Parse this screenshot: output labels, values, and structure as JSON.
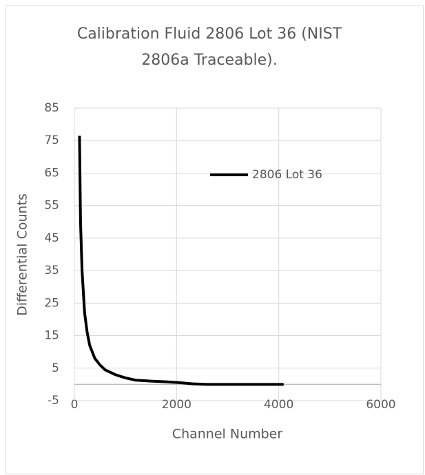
{
  "chart_data": {
    "type": "line",
    "title": [
      "Calibration Fluid 2806 Lot 36 (NIST",
      "2806a Traceable)."
    ],
    "x_label": "Channel Number",
    "y_label": "Differential Counts",
    "x": [
      100,
      120,
      150,
      200,
      250,
      300,
      400,
      500,
      600,
      800,
      1000,
      1200,
      1500,
      1800,
      2000,
      2300,
      2600,
      3000,
      3500,
      4096
    ],
    "series": [
      {
        "name": "2806 Lot 36",
        "color": "#000000",
        "values": [
          76.5,
          50,
          35,
          22,
          16,
          12,
          8,
          6,
          4.5,
          3,
          2,
          1.3,
          1,
          0.8,
          0.6,
          0.2,
          0,
          0,
          0,
          0
        ]
      }
    ],
    "xlim": [
      0,
      6000
    ],
    "xticks": [
      0,
      2000,
      4000,
      6000
    ],
    "ylim": [
      -5,
      85
    ],
    "yticks": [
      -5,
      5,
      15,
      25,
      35,
      45,
      55,
      65,
      75,
      85
    ],
    "grid": true,
    "legend": "upper right"
  }
}
